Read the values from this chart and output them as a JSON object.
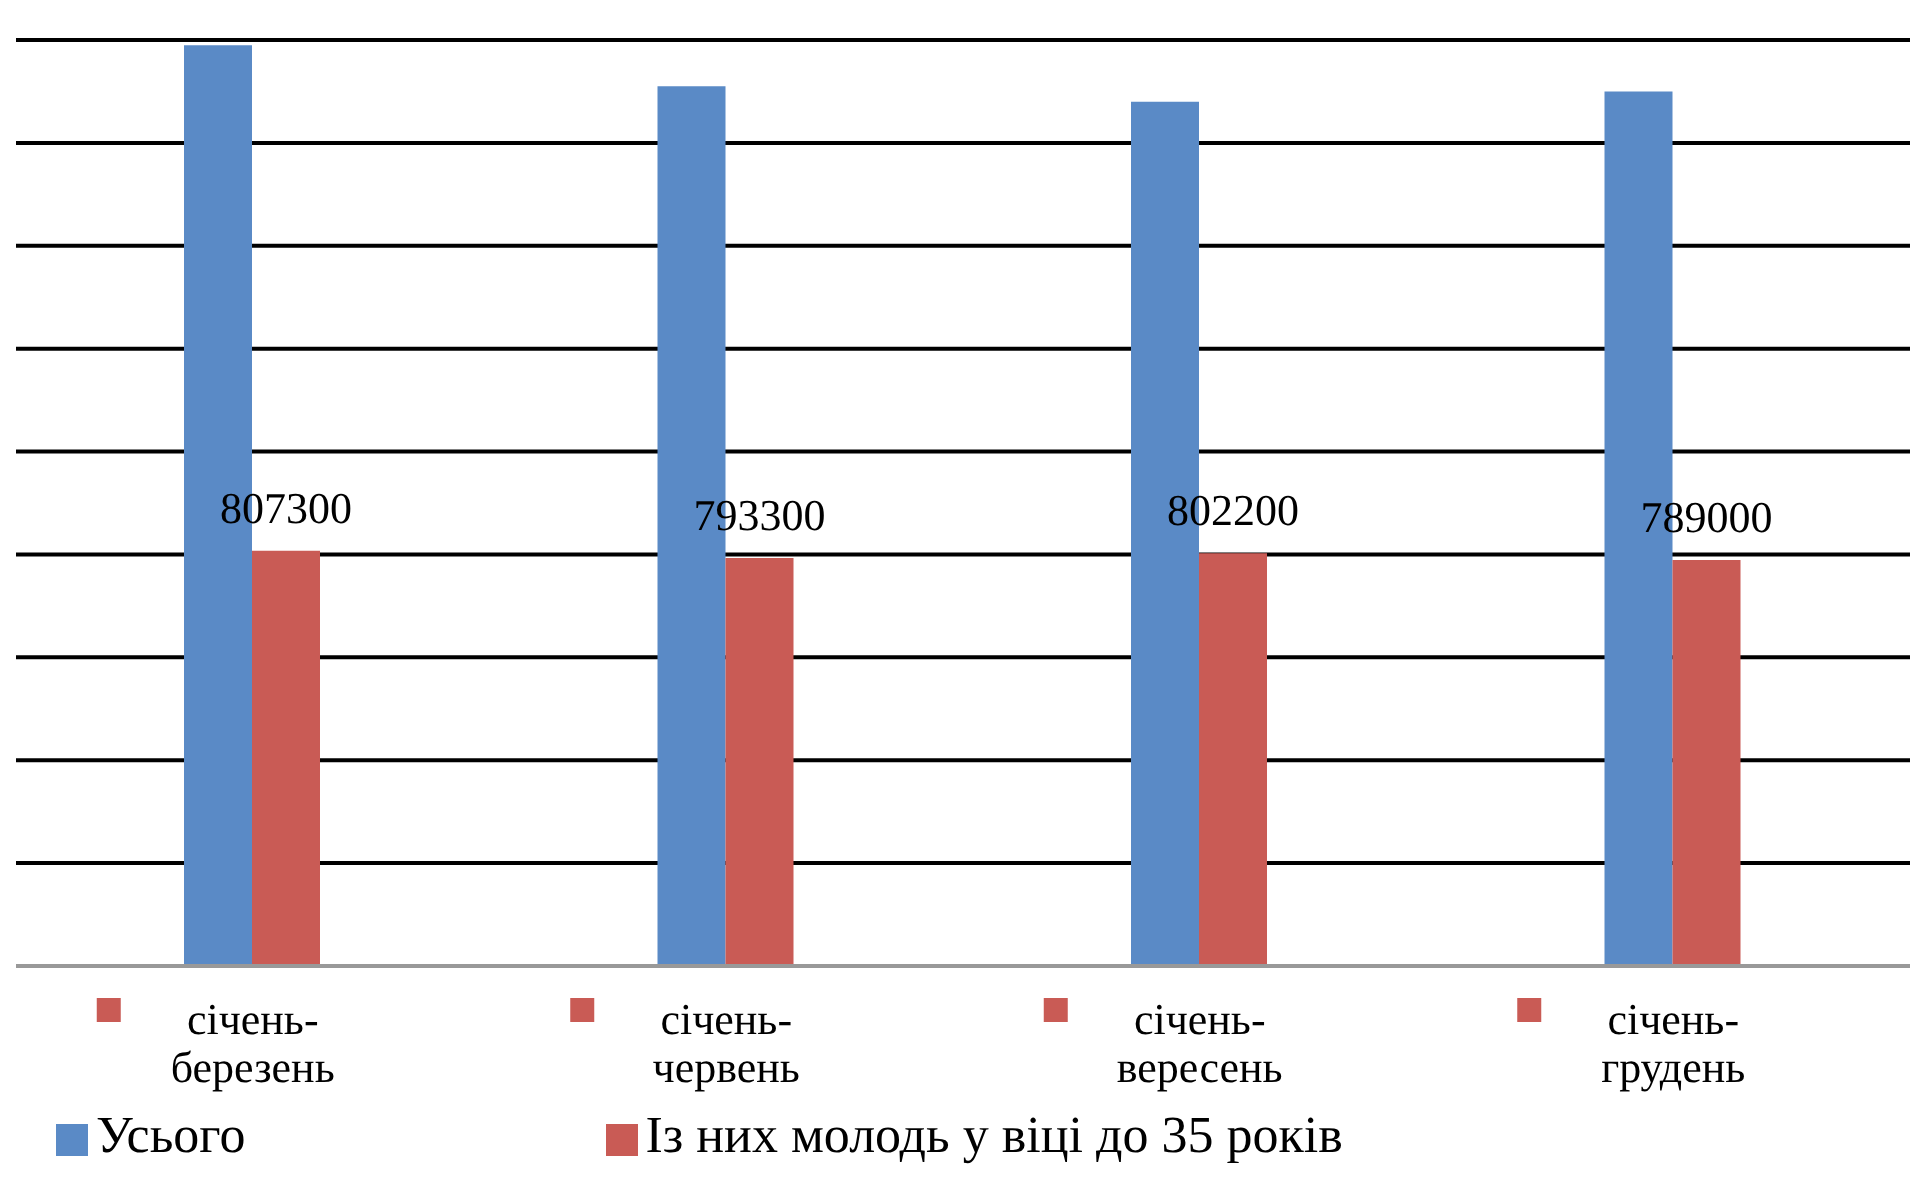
{
  "chart_data": {
    "type": "bar",
    "categories": [
      "січень-березень",
      "січень-червень",
      "січень-вересень",
      "січень-грудень"
    ],
    "series": [
      {
        "name": "Усього",
        "color": "#5a8ac6",
        "values": [
          1790000,
          1710000,
          1680000,
          1700000
        ]
      },
      {
        "name": "Із них молодь у віці до 35 років",
        "color": "#c95b55",
        "values": [
          807300,
          793300,
          802200,
          789000
        ],
        "value_labels": [
          "807300",
          "793300",
          "802200",
          "789000"
        ]
      }
    ],
    "ylim": [
      0,
      1800000
    ],
    "yticks": [
      0,
      200000,
      400000,
      600000,
      800000,
      1000000,
      1200000,
      1400000,
      1600000,
      1800000
    ],
    "grid": "y",
    "legend": "bottom",
    "tick_labels": "x"
  }
}
